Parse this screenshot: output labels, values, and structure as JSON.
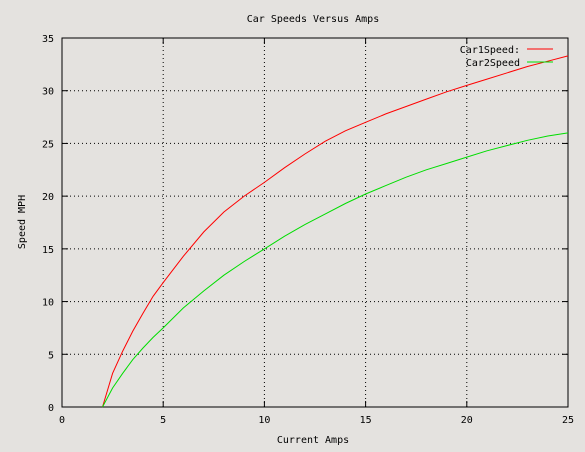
{
  "chart_data": {
    "type": "line",
    "title": "Car Speeds Versus Amps",
    "xlabel": "Current Amps",
    "ylabel": "Speed MPH",
    "xlim": [
      0,
      25
    ],
    "ylim": [
      0,
      35
    ],
    "x_ticks": [
      0,
      5,
      10,
      15,
      20,
      25
    ],
    "y_ticks": [
      0,
      5,
      10,
      15,
      20,
      25,
      30,
      35
    ],
    "x_tick_labels": [
      "0",
      "5",
      "10",
      "15",
      "20",
      "25"
    ],
    "y_tick_labels": [
      "0",
      "5",
      "10",
      "15",
      "20",
      "25",
      "30",
      "35"
    ],
    "grid": true,
    "legend_position": "top-right",
    "series": [
      {
        "name": "Car1Speed:",
        "color": "#ff0000",
        "x": [
          2,
          2.5,
          3,
          3.5,
          4,
          4.5,
          5,
          6,
          7,
          8,
          9,
          10,
          11,
          12,
          13,
          14,
          15,
          16,
          17,
          18,
          19,
          20,
          21,
          22,
          23,
          24,
          25
        ],
        "y": [
          0,
          3.2,
          5.3,
          7.2,
          8.9,
          10.5,
          11.8,
          14.3,
          16.6,
          18.5,
          20.0,
          21.3,
          22.7,
          24.0,
          25.2,
          26.2,
          27.0,
          27.8,
          28.5,
          29.2,
          29.9,
          30.5,
          31.1,
          31.7,
          32.3,
          32.8,
          33.3
        ]
      },
      {
        "name": "Car2Speed",
        "color": "#00dd00",
        "x": [
          2,
          2.5,
          3,
          3.5,
          4,
          4.5,
          5,
          6,
          7,
          8,
          9,
          10,
          11,
          12,
          13,
          14,
          15,
          16,
          17,
          18,
          19,
          20,
          21,
          22,
          23,
          24,
          25
        ],
        "y": [
          0,
          1.8,
          3.2,
          4.5,
          5.6,
          6.6,
          7.5,
          9.4,
          11.0,
          12.5,
          13.8,
          15.0,
          16.2,
          17.3,
          18.3,
          19.3,
          20.2,
          21.0,
          21.8,
          22.5,
          23.1,
          23.7,
          24.3,
          24.8,
          25.3,
          25.7,
          26.0
        ]
      }
    ]
  }
}
